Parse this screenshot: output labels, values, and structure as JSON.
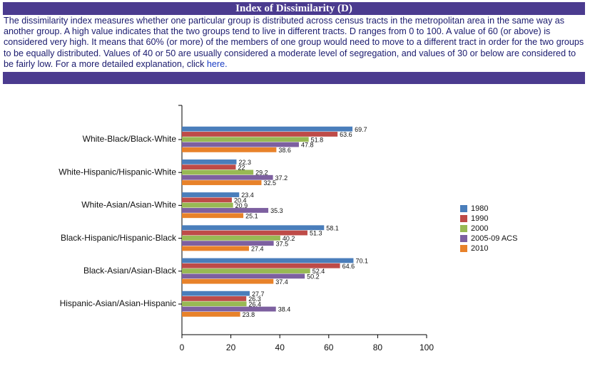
{
  "header": {
    "title": "Index of Dissimilarity (D)"
  },
  "description": {
    "text": "The dissimilarity index measures whether one particular group is distributed across census tracts in the metropolitan area in the same way as another group. A high value indicates that the two groups tend to live in different tracts. D ranges from 0 to 100. A value of 60 (or above) is considered very high. It means that 60% (or more) of the members of one group would need to move to a different tract in order for the two groups to be equally distributed. Values of 40 or 50 are usually considered a moderate level of segregation, and values of 30 or below are considered to be fairly low. For a more detailed explanation, click",
    "link": "here."
  },
  "chart_data": {
    "type": "bar",
    "orientation": "horizontal",
    "categories": [
      "White-Black/Black-White",
      "White-Hispanic/Hispanic-White",
      "White-Asian/Asian-White",
      "Black-Hispanic/Hispanic-Black",
      "Black-Asian/Asian-Black",
      "Hispanic-Asian/Asian-Hispanic"
    ],
    "series": [
      {
        "name": "1980",
        "color": "#4a7ebb",
        "values": [
          69.7,
          22.3,
          23.4,
          58.1,
          70.1,
          27.7
        ]
      },
      {
        "name": "1990",
        "color": "#be4b48",
        "values": [
          63.6,
          22,
          20.4,
          51.3,
          64.6,
          26.3
        ]
      },
      {
        "name": "2000",
        "color": "#98b954",
        "values": [
          51.8,
          29.2,
          20.9,
          40.2,
          52.4,
          26.4
        ]
      },
      {
        "name": "2005-09 ACS",
        "color": "#7d60a0",
        "values": [
          47.8,
          37.2,
          35.3,
          37.5,
          50.2,
          38.4
        ]
      },
      {
        "name": "2010",
        "color": "#e8822a",
        "values": [
          38.6,
          32.5,
          25.1,
          27.4,
          37.4,
          23.8
        ]
      }
    ],
    "xlim": [
      0,
      100
    ],
    "xticks": [
      0,
      20,
      40,
      60,
      80,
      100
    ],
    "legend": "right"
  }
}
